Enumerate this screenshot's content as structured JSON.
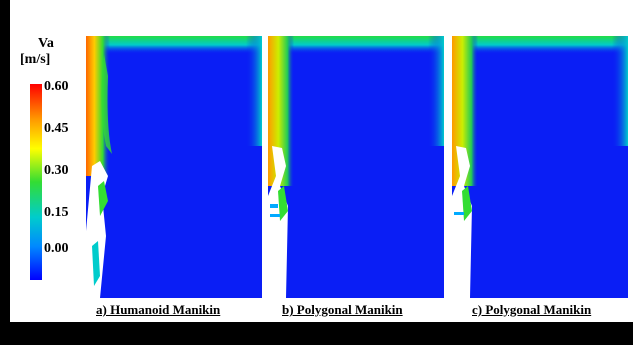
{
  "legend": {
    "title": "Va",
    "unit": "[m/s]",
    "ticks": [
      "0.60",
      "0.45",
      "0.30",
      "0.15",
      "0.00"
    ],
    "colors": [
      "#ff0000",
      "#ff9900",
      "#ffff00",
      "#33dd33",
      "#00cccc",
      "#0088ff",
      "#0000ff"
    ]
  },
  "panels": [
    {
      "caption": "a) Humanoid Manikin"
    },
    {
      "caption": "b) Polygonal Manikin"
    },
    {
      "caption": "c) Polygonal Manikin"
    }
  ],
  "colors": {
    "background_field": "#0a1ef5",
    "frame": "#000000"
  }
}
